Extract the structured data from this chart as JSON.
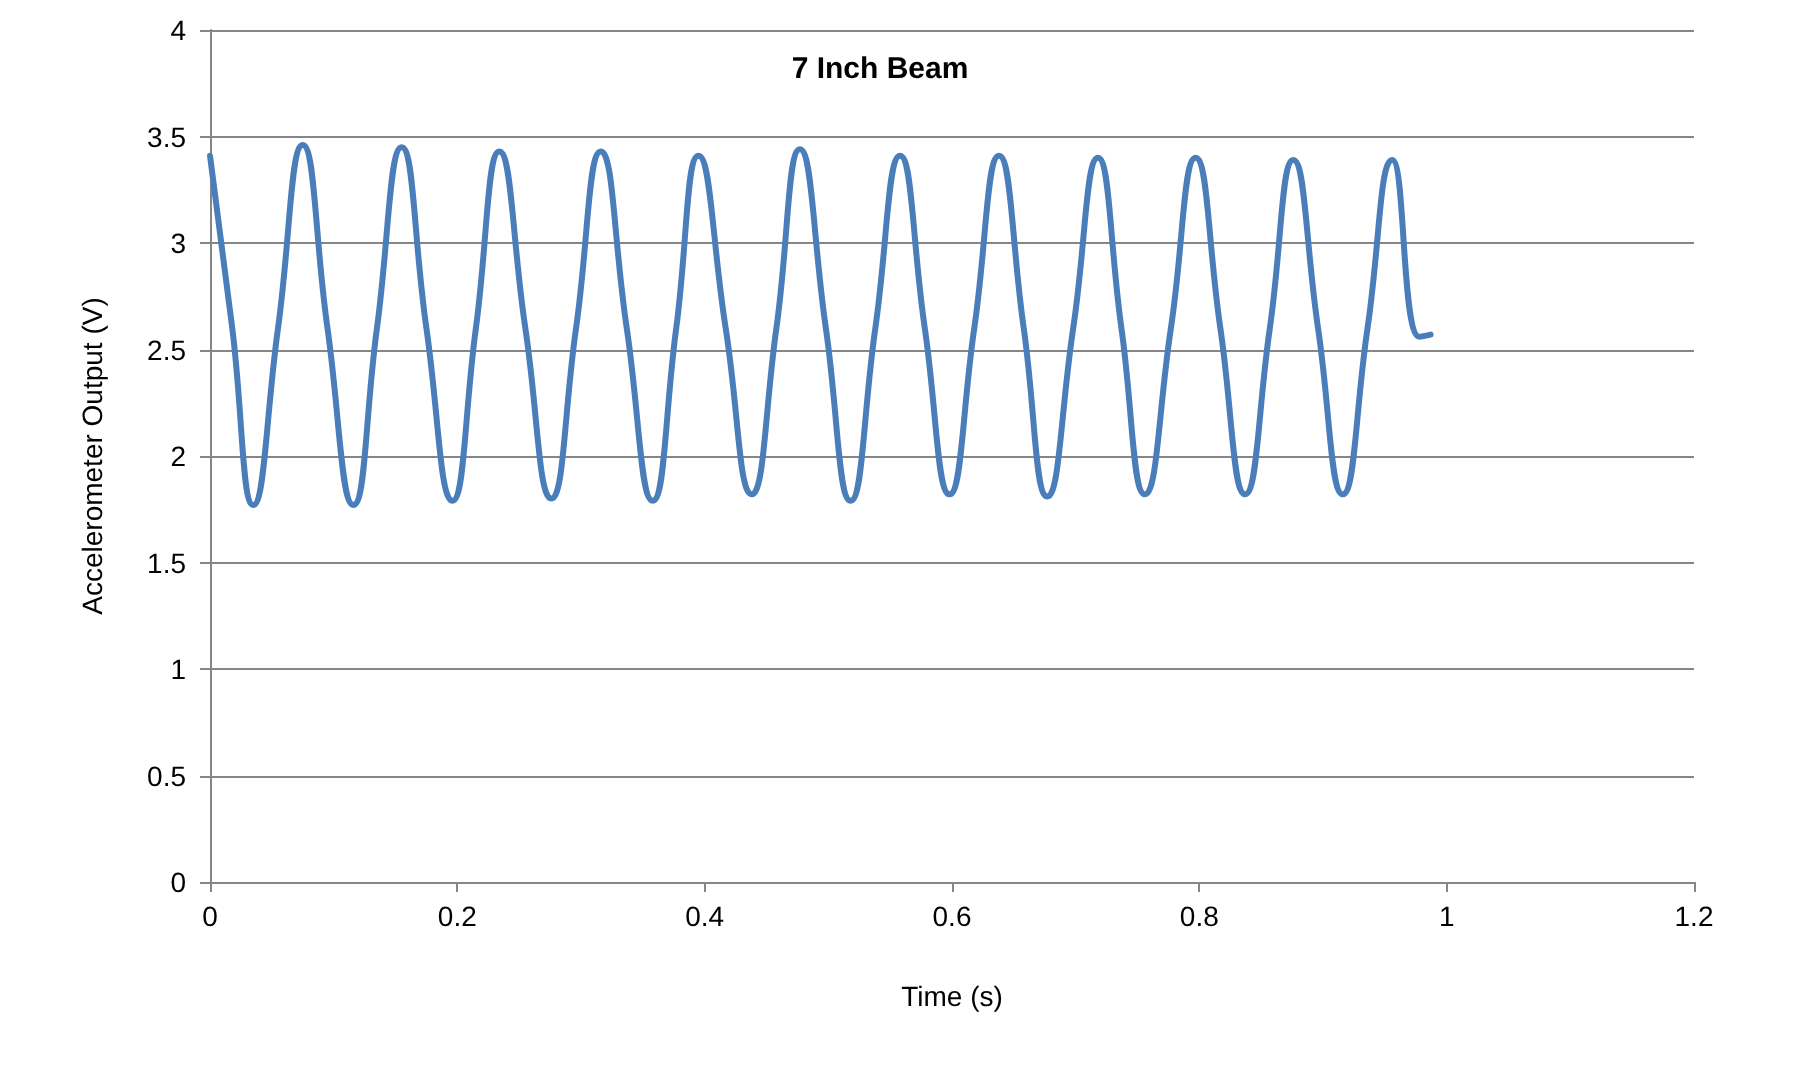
{
  "chart_data": {
    "type": "line",
    "title": "7 Inch Beam",
    "xlabel": "Time (s)",
    "ylabel": "Accelerometer Output (V)",
    "x": [
      0,
      0.018,
      0.035,
      0.055,
      0.075,
      0.095,
      0.116,
      0.135,
      0.155,
      0.175,
      0.196,
      0.215,
      0.234,
      0.255,
      0.276,
      0.296,
      0.316,
      0.337,
      0.358,
      0.377,
      0.395,
      0.417,
      0.438,
      0.458,
      0.477,
      0.498,
      0.518,
      0.538,
      0.558,
      0.578,
      0.598,
      0.618,
      0.638,
      0.658,
      0.677,
      0.698,
      0.718,
      0.737,
      0.756,
      0.777,
      0.797,
      0.817,
      0.837,
      0.857,
      0.876,
      0.896,
      0.916,
      0.936,
      0.956,
      0.978,
      0.987
    ],
    "series": [
      {
        "color": "#4a7ebb",
        "values": [
          3.41,
          2.6,
          1.77,
          2.6,
          3.46,
          2.6,
          1.77,
          2.6,
          3.45,
          2.6,
          1.79,
          2.6,
          3.43,
          2.6,
          1.8,
          2.6,
          3.43,
          2.6,
          1.79,
          2.6,
          3.41,
          2.6,
          1.82,
          2.6,
          3.44,
          2.6,
          1.79,
          2.6,
          3.41,
          2.6,
          1.82,
          2.6,
          3.41,
          2.6,
          1.81,
          2.6,
          3.4,
          2.6,
          1.82,
          2.6,
          3.4,
          2.6,
          1.82,
          2.6,
          3.39,
          2.6,
          1.82,
          2.6,
          3.39,
          2.56,
          2.57
        ]
      }
    ],
    "xlim": [
      0,
      1.2
    ],
    "xticks": [
      0,
      0.2,
      0.4,
      0.6,
      0.8,
      1,
      1.2
    ],
    "ylim": [
      0,
      4
    ],
    "yticks": [
      0,
      0.5,
      1,
      1.5,
      2,
      2.5,
      3,
      3.5,
      4
    ],
    "grid": "y",
    "marker": "none",
    "line_style": "solid"
  }
}
